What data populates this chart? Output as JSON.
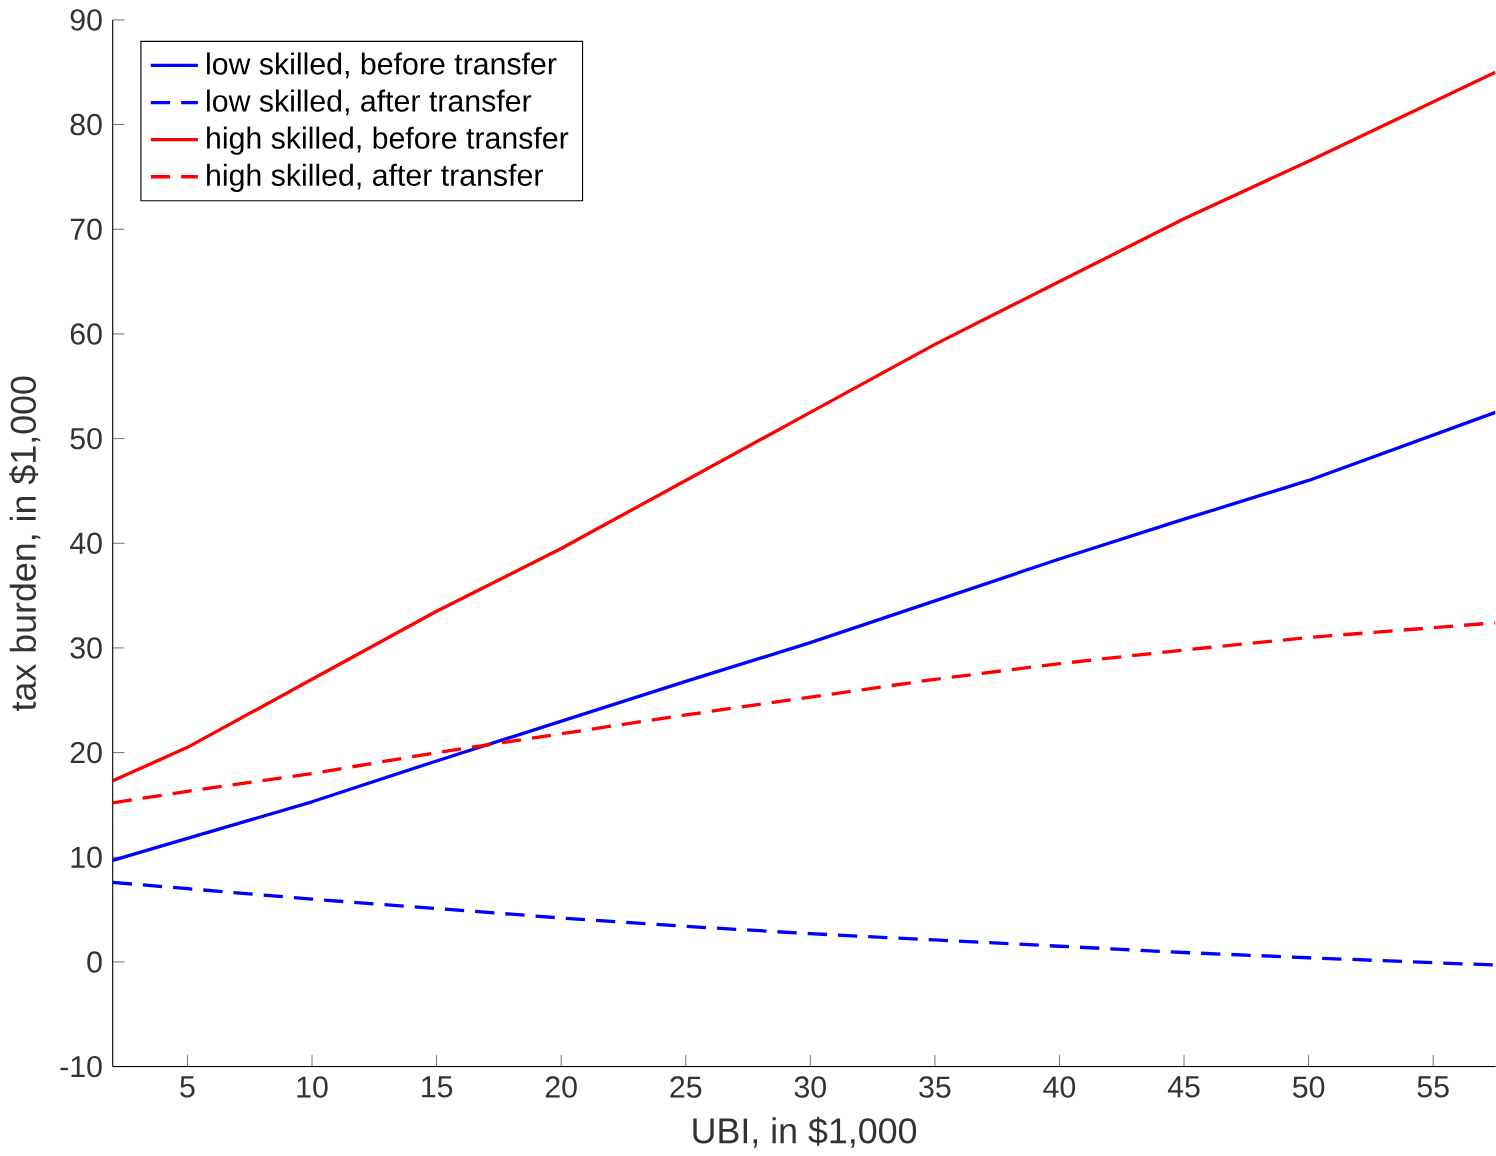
{
  "chart_data": {
    "type": "line",
    "xlabel": "UBI, in $1,000",
    "ylabel": "tax burden, in $1,000",
    "x": [
      2,
      5,
      10,
      15,
      20,
      25,
      30,
      35,
      40,
      45,
      50,
      57.5
    ],
    "series": [
      {
        "name": "low skilled, before transfer",
        "color": "#0000ff",
        "line_style": "solid",
        "values": [
          9.7,
          11.8,
          15.3,
          19.2,
          23,
          26.8,
          30.5,
          34.5,
          38.5,
          42.3,
          46,
          52.5
        ]
      },
      {
        "name": "low skilled, after transfer",
        "color": "#0000ff",
        "line_style": "dashed",
        "values": [
          7.6,
          7,
          6,
          5.1,
          4.2,
          3.4,
          2.7,
          2.1,
          1.5,
          0.9,
          0.4,
          -0.3
        ]
      },
      {
        "name": "high skilled, before transfer",
        "color": "#ff0000",
        "line_style": "solid",
        "values": [
          17.3,
          20.5,
          27,
          33.5,
          39.5,
          46,
          52.5,
          59,
          65,
          71,
          76.5,
          85
        ]
      },
      {
        "name": "high skilled, after transfer",
        "color": "#ff0000",
        "line_style": "dashed",
        "values": [
          15.2,
          16.3,
          18,
          20,
          21.8,
          23.6,
          25.3,
          27,
          28.5,
          29.8,
          31,
          32.4
        ]
      }
    ],
    "xlim": [
      2,
      57.5
    ],
    "xticks": [
      5,
      10,
      15,
      20,
      25,
      30,
      35,
      40,
      45,
      50,
      55
    ],
    "ylim": [
      -10,
      90
    ],
    "yticks": [
      -10,
      0,
      10,
      20,
      30,
      40,
      50,
      60,
      70,
      80,
      90
    ],
    "grid": false,
    "legend": "top left",
    "marker": "none"
  }
}
